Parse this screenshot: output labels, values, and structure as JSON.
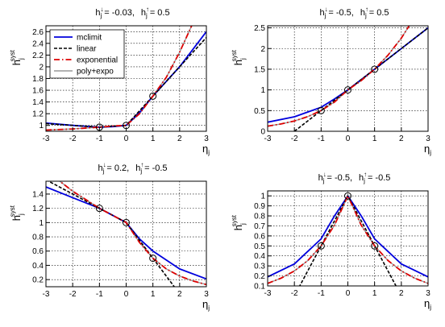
{
  "colors": {
    "mclimit": "#0000dd",
    "linear": "#000000",
    "exponential": "#dd0000",
    "poly_expo": "#999999",
    "grid": "#000000",
    "marker": "#000000"
  },
  "legend": {
    "placement": "top-left",
    "entries": [
      {
        "key": "mclimit",
        "label": "mclimit",
        "style": "solid"
      },
      {
        "key": "linear",
        "label": "linear",
        "style": "dashed"
      },
      {
        "key": "exponential",
        "label": "exponential",
        "style": "dashdot"
      },
      {
        "key": "poly_expo",
        "label": "poly+expo",
        "style": "solid"
      }
    ]
  },
  "chart_data": [
    {
      "type": "line",
      "title": {
        "h_down_label": "h",
        "down_sup": "↓",
        "down_sub": "j",
        "down_value": "= -0.03,",
        "h_up_label": "h",
        "up_sup": "↑",
        "up_sub": "j",
        "up_value": "= 0.5"
      },
      "xlabel": "η",
      "xlabel_sub": "j",
      "ylabel": "h",
      "ylabel_sup": "syst",
      "ylabel_sub": "j",
      "xlim": [
        -3,
        3
      ],
      "ylim": [
        0.9,
        2.7
      ],
      "xticks": [
        -3,
        -2,
        -1,
        0,
        1,
        2,
        3
      ],
      "xtick_labels": [
        "-3",
        "-2",
        "-1",
        "0",
        "1",
        "2",
        "3"
      ],
      "yticks": [
        1,
        1.2,
        1.4,
        1.6,
        1.8,
        2,
        2.2,
        2.4,
        2.6
      ],
      "ytick_labels": [
        "1",
        "1.2",
        "1.4",
        "1.6",
        "1.8",
        "2",
        "2.2",
        "2.4",
        "2.6"
      ],
      "grid": true,
      "show_legend": true,
      "markers": {
        "x": [
          -1,
          0,
          1
        ],
        "y": [
          0.97,
          1.0,
          1.5
        ]
      },
      "series": [
        {
          "key": "mclimit",
          "x": [
            -3,
            -2,
            -1,
            -0.5,
            0,
            0.5,
            1,
            2,
            3
          ],
          "y": [
            1.04,
            1.0,
            0.97,
            0.98,
            1.0,
            1.22,
            1.5,
            2.0,
            2.6
          ]
        },
        {
          "key": "linear",
          "x": [
            -3,
            -2,
            -1,
            0,
            1,
            2,
            3
          ],
          "y": [
            1.03,
            1.0,
            0.97,
            1.0,
            1.5,
            2.0,
            2.5
          ]
        },
        {
          "key": "exponential",
          "x": [
            -3,
            -2,
            -1,
            -0.5,
            0,
            0.5,
            1,
            1.5,
            2,
            2.5,
            3
          ],
          "y": [
            0.92,
            0.94,
            0.97,
            0.99,
            1.0,
            1.2,
            1.5,
            1.82,
            2.25,
            2.75,
            3.4
          ]
        },
        {
          "key": "poly_expo",
          "x": [
            -3,
            -2,
            -1,
            -0.5,
            0,
            0.5,
            1,
            1.5,
            2,
            2.5,
            3
          ],
          "y": [
            0.92,
            0.94,
            0.97,
            0.99,
            1.0,
            1.2,
            1.5,
            1.82,
            2.25,
            2.75,
            3.4
          ]
        }
      ]
    },
    {
      "type": "line",
      "title": {
        "h_down_label": "h",
        "down_sup": "↓",
        "down_sub": "j",
        "down_value": "= -0.5,",
        "h_up_label": "h",
        "up_sup": "↑",
        "up_sub": "j",
        "up_value": "= 0.5"
      },
      "xlabel": "η",
      "xlabel_sub": "j",
      "ylabel": "h",
      "ylabel_sup": "syst",
      "ylabel_sub": "j",
      "xlim": [
        -3,
        3
      ],
      "ylim": [
        0,
        2.55
      ],
      "xticks": [
        -3,
        -2,
        -1,
        0,
        1,
        2,
        3
      ],
      "xtick_labels": [
        "-3",
        "-2",
        "-1",
        "0",
        "1",
        "2",
        "3"
      ],
      "yticks": [
        0,
        0.5,
        1,
        1.5,
        2,
        2.5
      ],
      "ytick_labels": [
        "0",
        "0.5",
        "1",
        "1.5",
        "2",
        "2.5"
      ],
      "grid": true,
      "show_legend": false,
      "markers": {
        "x": [
          -1,
          0,
          1
        ],
        "y": [
          0.5,
          1.0,
          1.5
        ]
      },
      "series": [
        {
          "key": "mclimit",
          "x": [
            -3,
            -2,
            -1,
            -0.5,
            0,
            0.5,
            1,
            2,
            3
          ],
          "y": [
            0.22,
            0.35,
            0.58,
            0.78,
            1.0,
            1.25,
            1.5,
            2.0,
            2.5
          ]
        },
        {
          "key": "linear",
          "x": [
            -2,
            -1,
            0,
            1,
            2,
            3
          ],
          "y": [
            0.0,
            0.5,
            1.0,
            1.5,
            2.0,
            2.5
          ]
        },
        {
          "key": "exponential",
          "x": [
            -3,
            -2.5,
            -2,
            -1.5,
            -1,
            -0.5,
            0,
            0.5,
            1,
            1.5,
            2,
            2.5
          ],
          "y": [
            0.125,
            0.177,
            0.25,
            0.354,
            0.5,
            0.707,
            1.0,
            1.225,
            1.5,
            1.84,
            2.25,
            2.76
          ]
        },
        {
          "key": "poly_expo",
          "x": [
            -3,
            -2.5,
            -2,
            -1.5,
            -1,
            -0.5,
            0,
            0.5,
            1,
            1.5,
            2,
            2.5
          ],
          "y": [
            0.125,
            0.177,
            0.25,
            0.354,
            0.5,
            0.707,
            1.0,
            1.225,
            1.5,
            1.84,
            2.25,
            2.76
          ]
        }
      ]
    },
    {
      "type": "line",
      "title": {
        "h_down_label": "h",
        "down_sup": "↓",
        "down_sub": "j",
        "down_value": "= 0.2,",
        "h_up_label": "h",
        "up_sup": "↑",
        "up_sub": "j",
        "up_value": "= -0.5"
      },
      "xlabel": "η",
      "xlabel_sub": "j",
      "ylabel": "h",
      "ylabel_sup": "syst",
      "ylabel_sub": "j",
      "xlim": [
        -3,
        3
      ],
      "ylim": [
        0.1,
        1.58
      ],
      "xticks": [
        -3,
        -2,
        -1,
        0,
        1,
        2,
        3
      ],
      "xtick_labels": [
        "-3",
        "-2",
        "-1",
        "0",
        "1",
        "2",
        "3"
      ],
      "yticks": [
        0.2,
        0.4,
        0.6,
        0.8,
        1,
        1.2,
        1.4
      ],
      "ytick_labels": [
        "0.2",
        "0.4",
        "0.6",
        "0.8",
        "1",
        "1.2",
        "1.4"
      ],
      "grid": true,
      "show_legend": false,
      "markers": {
        "x": [
          -1,
          0,
          1
        ],
        "y": [
          1.2,
          1.0,
          0.5
        ]
      },
      "series": [
        {
          "key": "mclimit",
          "x": [
            -3,
            -2,
            -1,
            0,
            0.5,
            1,
            2,
            3
          ],
          "y": [
            1.5,
            1.35,
            1.2,
            1.0,
            0.77,
            0.6,
            0.35,
            0.21
          ]
        },
        {
          "key": "linear",
          "x": [
            -3,
            -2,
            -1,
            0,
            1,
            2
          ],
          "y": [
            1.6,
            1.4,
            1.2,
            1.0,
            0.5,
            0.0
          ]
        },
        {
          "key": "exponential",
          "x": [
            -3,
            -2,
            -1,
            0,
            0.5,
            1,
            1.5,
            2,
            2.5,
            3
          ],
          "y": [
            1.73,
            1.44,
            1.2,
            1.0,
            0.72,
            0.5,
            0.35,
            0.25,
            0.18,
            0.13
          ]
        },
        {
          "key": "poly_expo",
          "x": [
            -3,
            -2,
            -1,
            0,
            0.5,
            1,
            1.5,
            2,
            2.5,
            3
          ],
          "y": [
            1.73,
            1.44,
            1.2,
            1.0,
            0.72,
            0.5,
            0.35,
            0.25,
            0.18,
            0.13
          ]
        }
      ]
    },
    {
      "type": "line",
      "title": {
        "h_down_label": "h",
        "down_sup": "↓",
        "down_sub": "j",
        "down_value": "= -0.5,",
        "h_up_label": "h",
        "up_sup": "↑",
        "up_sub": "j",
        "up_value": "= -0.5"
      },
      "xlabel": "η",
      "xlabel_sub": "j",
      "ylabel": "h",
      "ylabel_sup": "syst",
      "ylabel_sub": "j",
      "xlim": [
        -3,
        3
      ],
      "ylim": [
        0.1,
        1.05
      ],
      "xticks": [
        -3,
        -2,
        -1,
        0,
        1,
        2,
        3
      ],
      "xtick_labels": [
        "-3",
        "-2",
        "-1",
        "0",
        "1",
        "2",
        "3"
      ],
      "yticks": [
        0.1,
        0.2,
        0.3,
        0.4,
        0.5,
        0.6,
        0.7,
        0.8,
        0.9,
        1
      ],
      "ytick_labels": [
        "0.1",
        "0.2",
        "0.3",
        "0.4",
        "0.5",
        "0.6",
        "0.7",
        "0.8",
        "0.9",
        "1"
      ],
      "grid": true,
      "show_legend": false,
      "markers": {
        "x": [
          -1,
          0,
          1
        ],
        "y": [
          0.5,
          1.0,
          0.5
        ]
      },
      "series": [
        {
          "key": "mclimit",
          "x": [
            -3,
            -2,
            -1,
            -0.5,
            0,
            0.5,
            1,
            2,
            3
          ],
          "y": [
            0.19,
            0.32,
            0.57,
            0.8,
            1.0,
            0.8,
            0.57,
            0.32,
            0.19
          ]
        },
        {
          "key": "linear",
          "x": [
            -2,
            -1,
            0,
            1,
            2
          ],
          "y": [
            0.0,
            0.5,
            1.0,
            0.5,
            0.0
          ]
        },
        {
          "key": "exponential",
          "x": [
            -3,
            -2.5,
            -2,
            -1.5,
            -1,
            -0.5,
            0,
            0.5,
            1,
            1.5,
            2,
            2.5,
            3
          ],
          "y": [
            0.125,
            0.177,
            0.25,
            0.354,
            0.5,
            0.707,
            1.0,
            0.707,
            0.5,
            0.354,
            0.25,
            0.177,
            0.125
          ]
        },
        {
          "key": "poly_expo",
          "x": [
            -3,
            -2.5,
            -2,
            -1.5,
            -1,
            -0.5,
            0,
            0.5,
            1,
            1.5,
            2,
            2.5,
            3
          ],
          "y": [
            0.125,
            0.177,
            0.25,
            0.354,
            0.5,
            0.707,
            1.0,
            0.707,
            0.5,
            0.354,
            0.25,
            0.177,
            0.125
          ]
        }
      ]
    }
  ]
}
